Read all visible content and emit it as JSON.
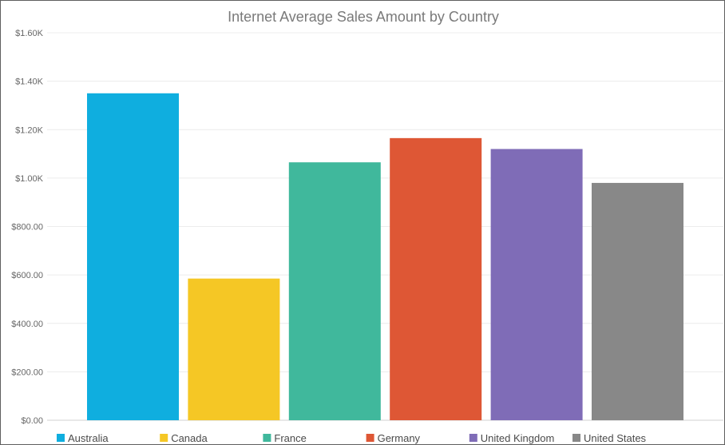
{
  "chart_data": {
    "type": "bar",
    "title": "Internet Average Sales Amount by Country",
    "xlabel": "",
    "ylabel": "",
    "categories": [
      "Australia",
      "Canada",
      "France",
      "Germany",
      "United Kingdom",
      "United States"
    ],
    "values": [
      1350,
      585,
      1065,
      1165,
      1120,
      980
    ],
    "colors": [
      "#0faedf",
      "#f5c725",
      "#40b89c",
      "#de5735",
      "#7f6cb7",
      "#888888"
    ],
    "ylim": [
      0,
      1600
    ],
    "yticks": [
      {
        "value": 0,
        "label": "$0.00"
      },
      {
        "value": 200,
        "label": "$200.00"
      },
      {
        "value": 400,
        "label": "$400.00"
      },
      {
        "value": 600,
        "label": "$600.00"
      },
      {
        "value": 800,
        "label": "$800.00"
      },
      {
        "value": 1000,
        "label": "$1.00K"
      },
      {
        "value": 1200,
        "label": "$1.20K"
      },
      {
        "value": 1400,
        "label": "$1.40K"
      },
      {
        "value": 1600,
        "label": "$1.60K"
      }
    ],
    "grid": true,
    "legend_position": "bottom"
  }
}
